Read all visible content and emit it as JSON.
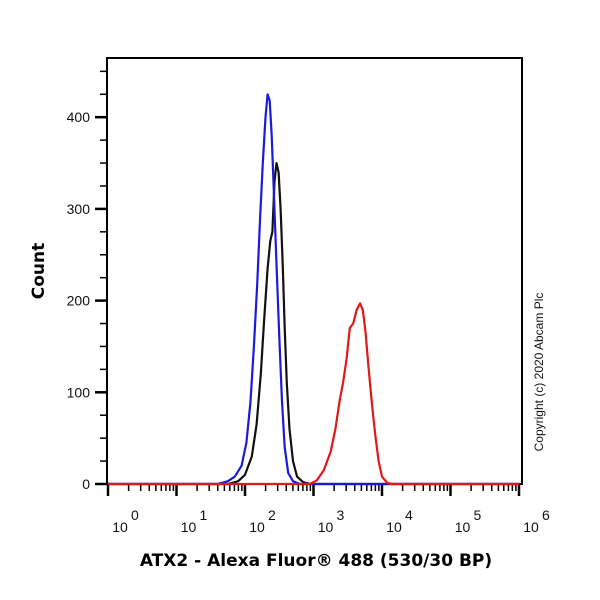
{
  "chart_data": {
    "type": "line",
    "title": "",
    "xlabel": "ATX2 - Alexa Fluor® 488 (530/30 BP)",
    "ylabel": "Count",
    "xscale": "log",
    "xlim": [
      1,
      1000000
    ],
    "ylim": [
      0,
      465
    ],
    "grid": false,
    "legend": null,
    "x_tick_labels": [
      {
        "base": "10",
        "exp": "0",
        "value": 1
      },
      {
        "base": "10",
        "exp": "1",
        "value": 10
      },
      {
        "base": "10",
        "exp": "2",
        "value": 100
      },
      {
        "base": "10",
        "exp": "3",
        "value": 1000
      },
      {
        "base": "10",
        "exp": "4",
        "value": 10000
      },
      {
        "base": "10",
        "exp": "5",
        "value": 100000
      },
      {
        "base": "10",
        "exp": "6",
        "value": 1000000
      }
    ],
    "y_ticks": [
      0,
      100,
      200,
      300,
      400
    ],
    "annotation": "Copyright (c) 2020 Abcam Plc",
    "series": [
      {
        "name": "Blue histogram",
        "color": "#1a1adc",
        "points_log10x_count": [
          [
            0.0,
            0
          ],
          [
            1.6,
            0
          ],
          [
            1.75,
            3
          ],
          [
            1.85,
            8
          ],
          [
            1.95,
            20
          ],
          [
            2.02,
            45
          ],
          [
            2.08,
            90
          ],
          [
            2.13,
            150
          ],
          [
            2.18,
            220
          ],
          [
            2.22,
            290
          ],
          [
            2.26,
            350
          ],
          [
            2.3,
            400
          ],
          [
            2.33,
            425
          ],
          [
            2.36,
            418
          ],
          [
            2.39,
            380
          ],
          [
            2.42,
            320
          ],
          [
            2.46,
            240
          ],
          [
            2.5,
            160
          ],
          [
            2.54,
            90
          ],
          [
            2.58,
            40
          ],
          [
            2.63,
            12
          ],
          [
            2.7,
            3
          ],
          [
            2.8,
            0
          ],
          [
            6.0,
            0
          ]
        ]
      },
      {
        "name": "Black histogram",
        "color": "#111111",
        "points_log10x_count": [
          [
            0.0,
            0
          ],
          [
            1.75,
            0
          ],
          [
            1.9,
            3
          ],
          [
            2.0,
            10
          ],
          [
            2.1,
            30
          ],
          [
            2.17,
            65
          ],
          [
            2.23,
            120
          ],
          [
            2.28,
            180
          ],
          [
            2.33,
            235
          ],
          [
            2.37,
            265
          ],
          [
            2.4,
            275
          ],
          [
            2.43,
            330
          ],
          [
            2.46,
            350
          ],
          [
            2.49,
            340
          ],
          [
            2.52,
            300
          ],
          [
            2.55,
            240
          ],
          [
            2.58,
            170
          ],
          [
            2.61,
            110
          ],
          [
            2.65,
            60
          ],
          [
            2.7,
            25
          ],
          [
            2.76,
            8
          ],
          [
            2.85,
            2
          ],
          [
            2.95,
            0
          ],
          [
            6.0,
            0
          ]
        ]
      },
      {
        "name": "Red histogram",
        "color": "#e01818",
        "points_log10x_count": [
          [
            0.0,
            0
          ],
          [
            2.95,
            0
          ],
          [
            3.05,
            4
          ],
          [
            3.15,
            15
          ],
          [
            3.25,
            35
          ],
          [
            3.32,
            60
          ],
          [
            3.38,
            90
          ],
          [
            3.43,
            110
          ],
          [
            3.48,
            135
          ],
          [
            3.53,
            170
          ],
          [
            3.58,
            175
          ],
          [
            3.63,
            190
          ],
          [
            3.68,
            197
          ],
          [
            3.72,
            190
          ],
          [
            3.76,
            165
          ],
          [
            3.8,
            130
          ],
          [
            3.85,
            90
          ],
          [
            3.9,
            55
          ],
          [
            3.95,
            25
          ],
          [
            4.0,
            8
          ],
          [
            4.08,
            1
          ],
          [
            4.15,
            0
          ],
          [
            6.0,
            0
          ]
        ]
      }
    ]
  },
  "plot": {
    "ylabel": "Count",
    "xlabel": "ATX2 - Alexa Fluor® 488 (530/30 BP)",
    "copyright": "Copyright (c) 2020 Abcam Plc",
    "y_tick_labels": [
      "0",
      "100",
      "200",
      "300",
      "400"
    ]
  }
}
